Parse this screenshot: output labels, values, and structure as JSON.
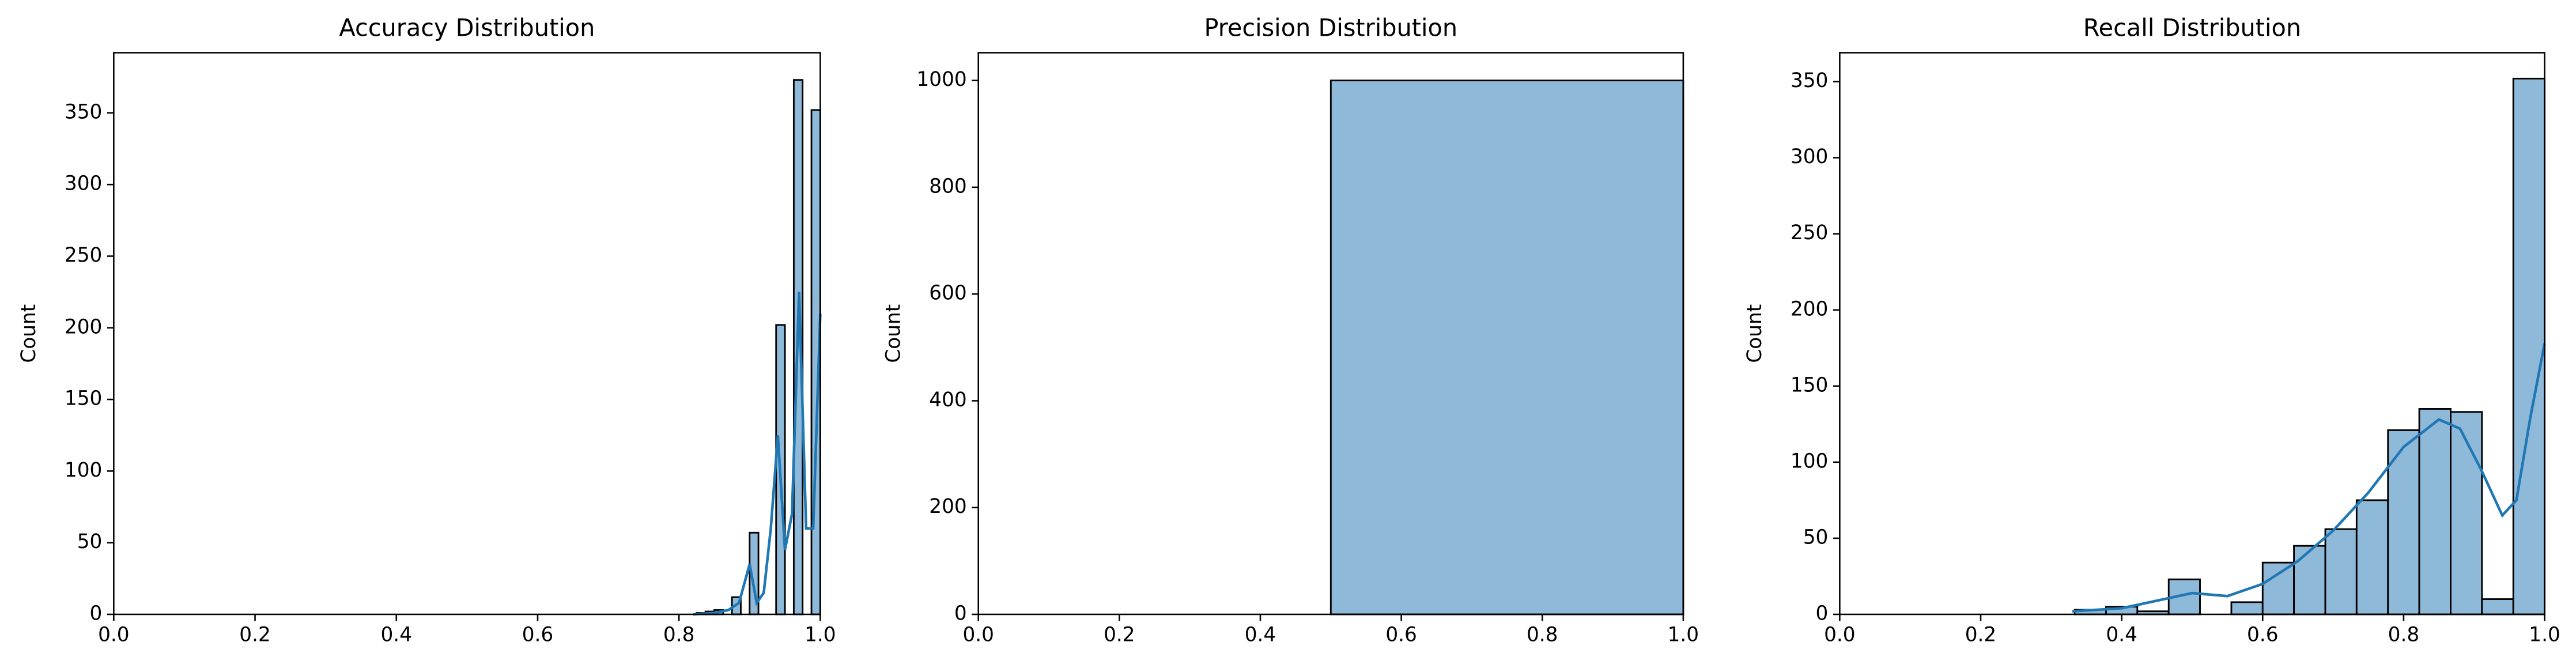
{
  "chart_data": [
    {
      "type": "histogram",
      "title": "Accuracy Distribution",
      "ylabel": "Count",
      "bins": [
        0.825,
        0.8375,
        0.85,
        0.8625,
        0.875,
        0.8875,
        0.9,
        0.9125,
        0.925,
        0.9375,
        0.95,
        0.9625,
        0.975,
        0.9875,
        1.0
      ],
      "counts": [
        1,
        2,
        3,
        0,
        12,
        0,
        57,
        0,
        0,
        202,
        0,
        373,
        0,
        352
      ],
      "color": "#8fb9d9",
      "edgecolor": "#000000",
      "kde": {
        "color": "#1f77b4",
        "x": [
          0.82,
          0.85,
          0.87,
          0.885,
          0.9,
          0.91,
          0.92,
          0.93,
          0.94,
          0.95,
          0.96,
          0.97,
          0.98,
          0.99,
          1.0
        ],
        "y": [
          0,
          1,
          3,
          8,
          35,
          8,
          15,
          60,
          125,
          45,
          70,
          225,
          60,
          60,
          210
        ]
      },
      "xlim": [
        0,
        1
      ],
      "ylim": [
        0,
        392
      ],
      "xticks": [
        {
          "value": 0,
          "label": "0.0"
        },
        0.2,
        0.4,
        0.6,
        0.8,
        {
          "value": 1,
          "label": "1.0"
        }
      ],
      "yticks": [
        0,
        50,
        100,
        150,
        200,
        250,
        300,
        350
      ]
    },
    {
      "type": "histogram",
      "title": "Precision Distribution",
      "ylabel": "Count",
      "bins": [
        0.5,
        1.0
      ],
      "counts": [
        1000
      ],
      "color": "#8fb9d9",
      "edgecolor": "#000000",
      "xlim": [
        0,
        1
      ],
      "ylim": [
        0,
        1052
      ],
      "xticks": [
        {
          "value": 0,
          "label": "0.0"
        },
        0.2,
        0.4,
        0.6,
        0.8,
        {
          "value": 1,
          "label": "1.0"
        }
      ],
      "yticks": [
        0,
        200,
        400,
        600,
        800,
        1000
      ]
    },
    {
      "type": "histogram",
      "title": "Recall Distribution",
      "ylabel": "Count",
      "bins": [
        0.3333,
        0.3778,
        0.4222,
        0.4667,
        0.5111,
        0.5556,
        0.6,
        0.6444,
        0.6889,
        0.7333,
        0.7778,
        0.8222,
        0.8667,
        0.9111,
        0.9556,
        1.0
      ],
      "counts": [
        3,
        5,
        2,
        23,
        0,
        8,
        34,
        45,
        56,
        75,
        121,
        135,
        133,
        10,
        352
      ],
      "color": "#8fb9d9",
      "edgecolor": "#000000",
      "kde": {
        "color": "#1f77b4",
        "x": [
          0.33,
          0.4,
          0.45,
          0.5,
          0.55,
          0.6,
          0.65,
          0.7,
          0.75,
          0.8,
          0.85,
          0.88,
          0.91,
          0.94,
          0.96,
          0.98,
          1.0
        ],
        "y": [
          2,
          4,
          9,
          14,
          12,
          20,
          35,
          55,
          80,
          110,
          128,
          122,
          95,
          65,
          75,
          130,
          178
        ]
      },
      "xlim": [
        0,
        1
      ],
      "ylim": [
        0,
        369
      ],
      "xticks": [
        {
          "value": 0,
          "label": "0.0"
        },
        0.2,
        0.4,
        0.6,
        0.8,
        {
          "value": 1,
          "label": "1.0"
        }
      ],
      "yticks": [
        0,
        50,
        100,
        150,
        200,
        250,
        300,
        350
      ]
    }
  ]
}
